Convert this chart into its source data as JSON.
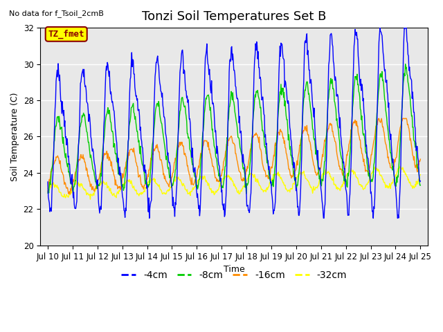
{
  "title": "Tonzi Soil Temperatures Set B",
  "xlabel": "Time",
  "ylabel": "Soil Temperature (C)",
  "top_left_text": "No data for f_Tsoil_2cmB",
  "annotation_box_text": "TZ_fmet",
  "annotation_box_color": "#FFFF00",
  "annotation_text_color": "#8B0000",
  "annotation_border_color": "#8B0000",
  "ylim": [
    20,
    32
  ],
  "yticks": [
    20,
    22,
    24,
    26,
    28,
    30,
    32
  ],
  "xtick_labels": [
    "Jul 10",
    "Jul 11",
    "Jul 12",
    "Jul 13",
    "Jul 14",
    "Jul 15",
    "Jul 16",
    "Jul 17",
    "Jul 18",
    "Jul 19",
    "Jul 20",
    "Jul 21",
    "Jul 22",
    "Jul 23",
    "Jul 24",
    "Jul 25"
  ],
  "colors": {
    "4cm": "#0000FF",
    "8cm": "#00CC00",
    "16cm": "#FF8C00",
    "32cm": "#FFFF00"
  },
  "legend_labels": [
    "-4cm",
    "-8cm",
    "-16cm",
    "-32cm"
  ],
  "plot_bg_color": "#E8E8E8",
  "fig_bg_color": "#FFFFFF",
  "grid_color": "#FFFFFF",
  "title_fontsize": 13,
  "label_fontsize": 9,
  "tick_fontsize": 8.5
}
